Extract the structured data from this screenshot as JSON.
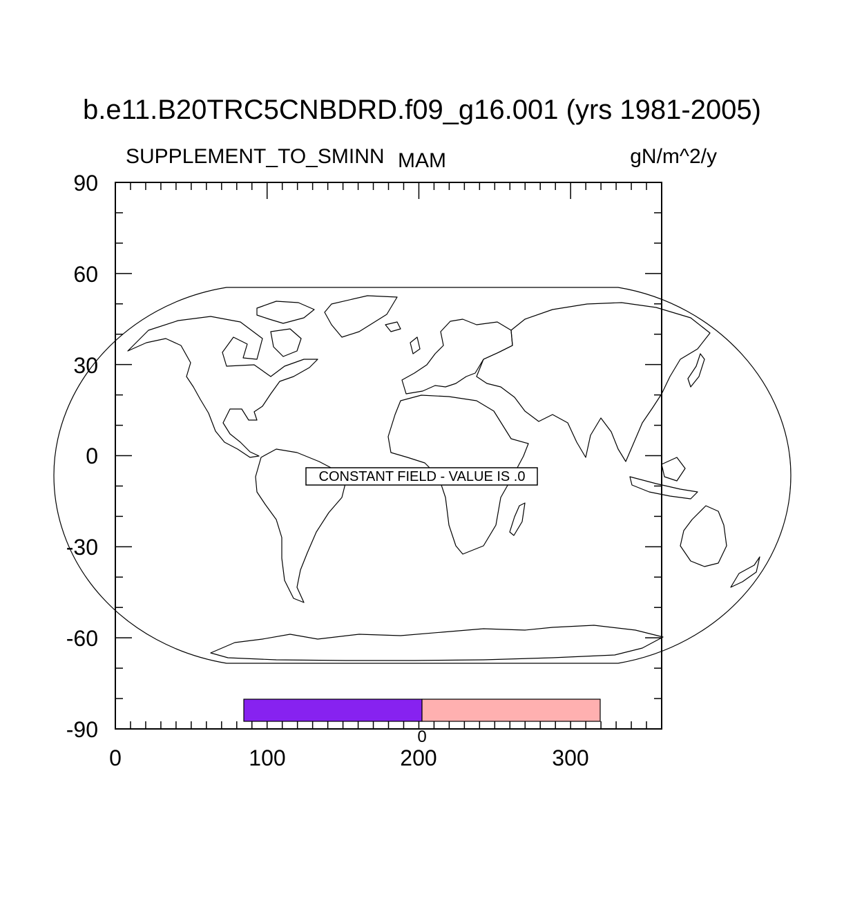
{
  "title": "b.e11.B20TRC5CNBDRD.f09_g16.001 (yrs 1981-2005)",
  "left_label": "SUPPLEMENT_TO_SMINN",
  "center_label": "MAM",
  "right_label": "gN/m^2/y",
  "constant_field_message": "CONSTANT FIELD - VALUE IS .0",
  "map_projection": "robinson",
  "colors": {
    "background": "#ffffff",
    "line": "#000000",
    "colorbar_left": "#8722f0",
    "colorbar_right": "#ffb0b0"
  },
  "chart_data": {
    "type": "heatmap",
    "title": "b.e11.B20TRC5CNBDRD.f09_g16.001 (yrs 1981-2005)",
    "variable": "SUPPLEMENT_TO_SMINN",
    "season": "MAM",
    "units": "gN/m^2/y",
    "field_value": 0.0,
    "xlim": [
      0,
      360
    ],
    "ylim": [
      -90,
      90
    ],
    "x_ticks": [
      "0",
      "100",
      "200",
      "300"
    ],
    "y_ticks": [
      "90",
      "60",
      "30",
      "0",
      "-30",
      "-60",
      "-90"
    ],
    "colorbar": {
      "levels": [
        "0"
      ],
      "colors": [
        "#8722f0",
        "#ffb0b0"
      ]
    },
    "grid": false
  }
}
